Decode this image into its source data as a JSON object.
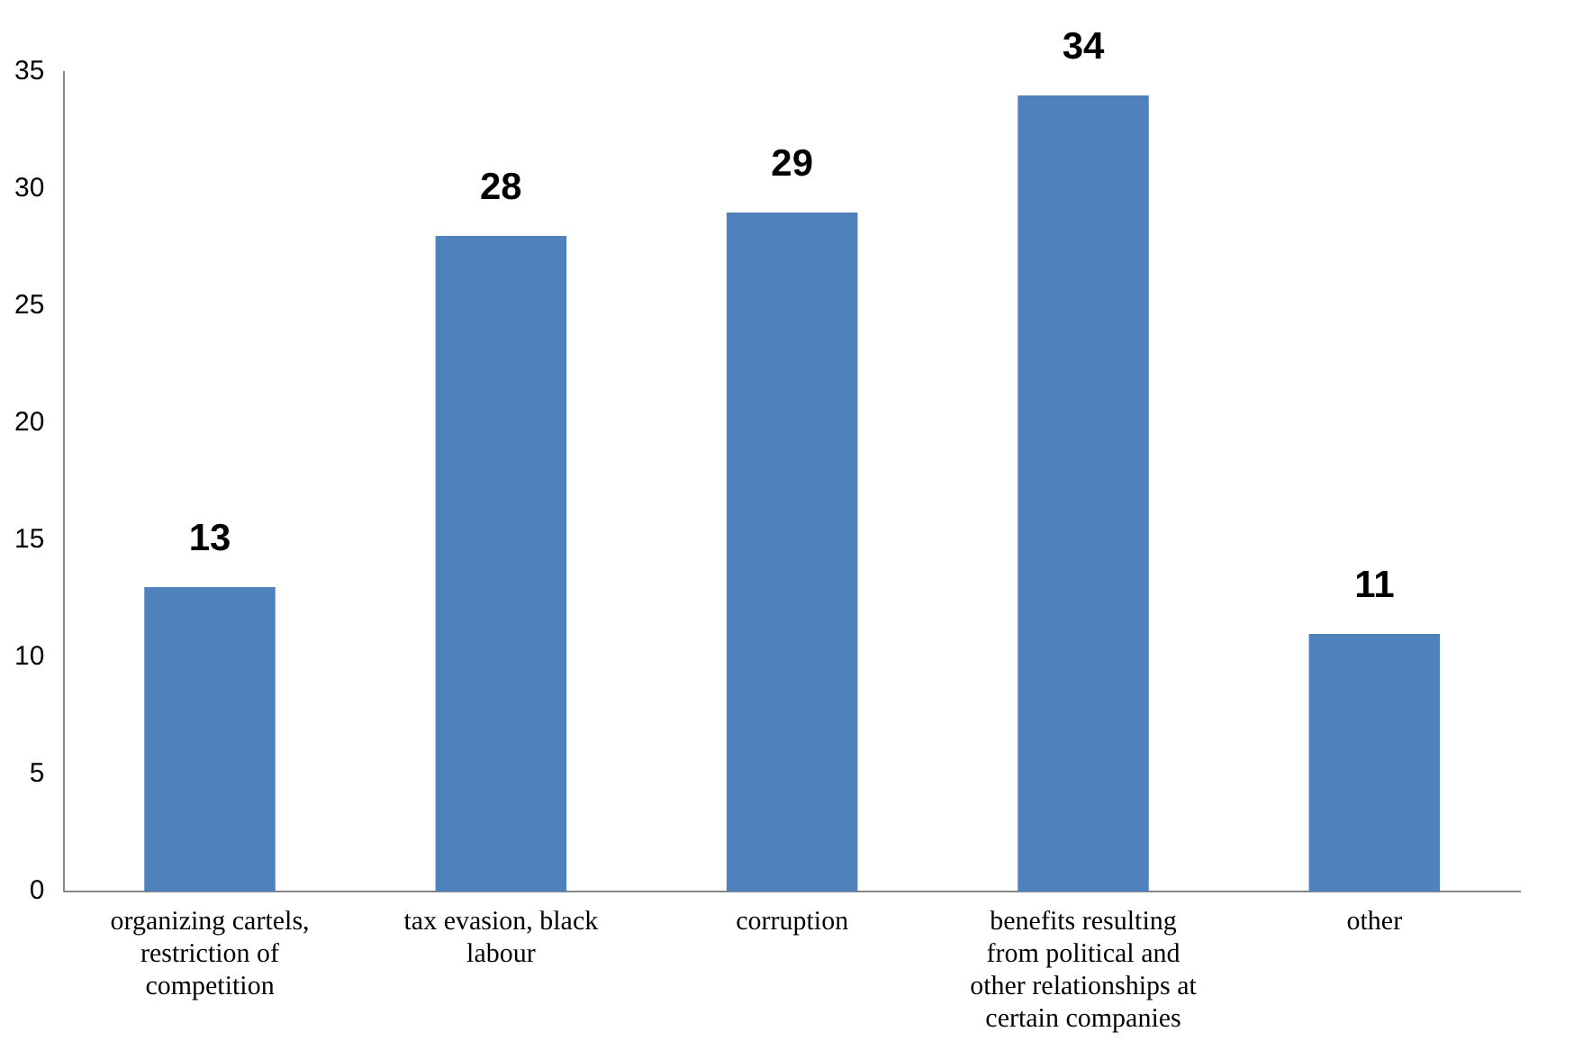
{
  "chart_data": {
    "type": "bar",
    "categories": [
      "organizing cartels, restriction of competition",
      "tax evasion, black labour",
      "corruption",
      "benefits resulting from political and other relationships at certain companies",
      "other"
    ],
    "values": [
      13,
      28,
      29,
      34,
      11
    ],
    "color": "#4f81bd",
    "ylim": [
      0,
      35
    ],
    "yticks": [
      0,
      5,
      10,
      15,
      20,
      25,
      30,
      35
    ],
    "grid": false,
    "legend": false,
    "data_labels": true
  }
}
